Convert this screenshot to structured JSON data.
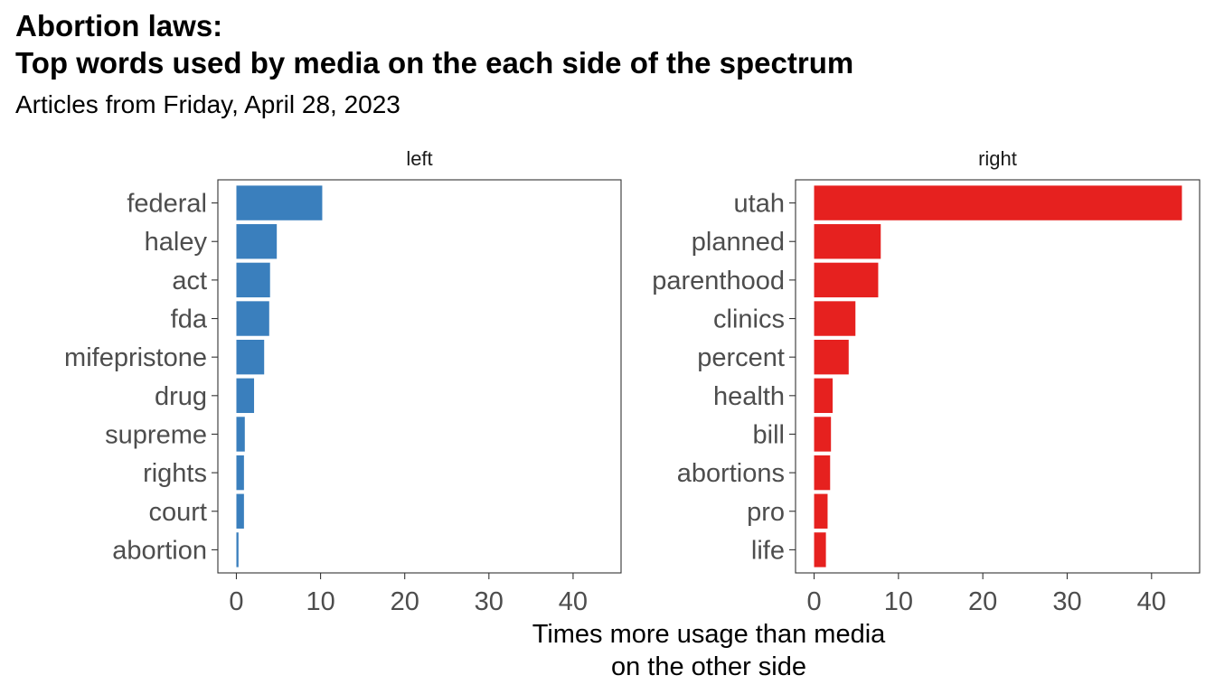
{
  "title_lines": [
    "Abortion laws:",
    "Top words used by media on the each side of the spectrum"
  ],
  "subtitle": "Articles from Friday, April 28, 2023",
  "chart_data": {
    "type": "bar",
    "orientation": "horizontal",
    "xlabel_lines": [
      "Times more usage than media",
      "on the other side"
    ],
    "ylabel": "",
    "xlim": [
      -2.2,
      45.7
    ],
    "x_ticks": [
      0,
      10,
      20,
      30,
      40
    ],
    "grid": false,
    "legend": "none",
    "panels": [
      {
        "name": "left",
        "color": "#3A7FBD",
        "categories": [
          "federal",
          "haley",
          "act",
          "fda",
          "mifepristone",
          "drug",
          "supreme",
          "rights",
          "court",
          "abortion"
        ],
        "values": [
          10.2,
          4.8,
          4.0,
          3.9,
          3.3,
          2.1,
          1.0,
          0.9,
          0.9,
          0.25
        ]
      },
      {
        "name": "right",
        "color": "#E6211F",
        "categories": [
          "utah",
          "planned",
          "parenthood",
          "clinics",
          "percent",
          "health",
          "bill",
          "abortions",
          "pro",
          "life"
        ],
        "values": [
          43.6,
          7.9,
          7.6,
          4.9,
          4.1,
          2.2,
          2.0,
          1.9,
          1.6,
          1.4
        ]
      }
    ]
  }
}
